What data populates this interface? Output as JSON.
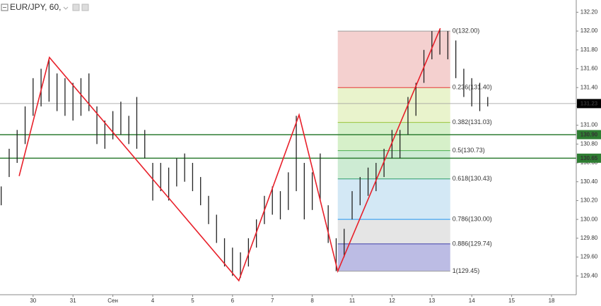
{
  "chart_data": {
    "type": "ohlc",
    "title": "EUR/JPY, 60,",
    "color": "#222222",
    "x": [
      -0.8,
      -0.6,
      -0.4,
      -0.2,
      0.0,
      0.2,
      0.4,
      0.6,
      0.8,
      1.0,
      1.2,
      1.4,
      1.6,
      1.8,
      2.0,
      2.2,
      2.4,
      2.6,
      2.8,
      3.0,
      3.2,
      3.4,
      3.6,
      3.8,
      4.0,
      4.2,
      4.4,
      4.6,
      4.8,
      5.0,
      5.2,
      5.4,
      5.6,
      5.8,
      6.0,
      6.2,
      6.4,
      6.6,
      6.8,
      7.0,
      7.2,
      7.4,
      7.6,
      7.8,
      8.0,
      8.2,
      8.4,
      8.6,
      8.8,
      9.0,
      9.2,
      9.4,
      9.6,
      9.8,
      10.0,
      10.2,
      10.4,
      10.6,
      10.8,
      11.0,
      11.2,
      11.4
    ],
    "high": [
      130.35,
      130.75,
      130.95,
      131.2,
      131.5,
      131.6,
      131.7,
      131.55,
      131.5,
      131.45,
      131.5,
      131.55,
      131.2,
      131.05,
      131.15,
      131.25,
      131.1,
      131.3,
      130.95,
      130.6,
      130.6,
      130.55,
      130.65,
      130.7,
      130.6,
      130.45,
      130.25,
      130.05,
      129.8,
      129.7,
      129.65,
      129.8,
      130.0,
      130.25,
      130.35,
      130.3,
      130.5,
      131.1,
      130.6,
      130.5,
      130.7,
      130.15,
      129.8,
      129.9,
      130.3,
      130.45,
      130.55,
      130.6,
      130.75,
      130.95,
      130.95,
      131.3,
      131.45,
      131.8,
      132.0,
      132.02,
      132.0,
      131.9,
      131.6,
      131.5,
      131.45,
      131.3
    ],
    "low": [
      130.15,
      130.45,
      130.6,
      130.8,
      131.1,
      131.2,
      131.25,
      131.15,
      131.1,
      131.05,
      131.1,
      131.15,
      130.8,
      130.75,
      130.85,
      130.9,
      130.8,
      130.75,
      130.65,
      130.2,
      130.3,
      130.2,
      130.35,
      130.4,
      130.3,
      130.15,
      129.95,
      129.75,
      129.5,
      129.4,
      129.38,
      129.5,
      129.7,
      129.95,
      130.05,
      130.0,
      130.1,
      130.3,
      130.0,
      130.1,
      130.2,
      129.75,
      129.45,
      129.6,
      130.0,
      130.15,
      130.25,
      130.3,
      130.45,
      130.65,
      130.65,
      130.9,
      131.1,
      131.45,
      131.7,
      131.75,
      131.7,
      131.5,
      131.3,
      131.2,
      131.15,
      131.2
    ],
    "xlim": [
      -0.83,
      13.62
    ],
    "ylim": [
      129.2,
      132.33
    ],
    "xticks": [
      {
        "value": 0,
        "label": "30"
      },
      {
        "value": 1,
        "label": "31"
      },
      {
        "value": 2,
        "label": "Сен"
      },
      {
        "value": 3,
        "label": "4"
      },
      {
        "value": 4,
        "label": "5"
      },
      {
        "value": 5,
        "label": "6"
      },
      {
        "value": 6,
        "label": "7"
      },
      {
        "value": 7,
        "label": "8"
      },
      {
        "value": 8,
        "label": "11"
      },
      {
        "value": 9,
        "label": "12"
      },
      {
        "value": 10,
        "label": "13"
      },
      {
        "value": 11,
        "label": "14"
      },
      {
        "value": 12,
        "label": "15"
      },
      {
        "value": 13,
        "label": "18"
      }
    ],
    "yticks": [
      {
        "value": 129.4,
        "label": "129.40"
      },
      {
        "value": 129.6,
        "label": "129.60"
      },
      {
        "value": 129.8,
        "label": "129.80"
      },
      {
        "value": 130.0,
        "label": "130.00"
      },
      {
        "value": 130.2,
        "label": "130.20"
      },
      {
        "value": 130.4,
        "label": "130.40"
      },
      {
        "value": 130.6,
        "label": "130.60"
      },
      {
        "value": 130.8,
        "label": "130.80"
      },
      {
        "value": 131.0,
        "label": "131.00"
      },
      {
        "value": 131.2,
        "label": "131.20"
      },
      {
        "value": 131.4,
        "label": "131.40"
      },
      {
        "value": 131.6,
        "label": "131.60"
      },
      {
        "value": 131.8,
        "label": "131.80"
      },
      {
        "value": 132.0,
        "label": "132.00"
      },
      {
        "value": 132.2,
        "label": "132.20"
      }
    ],
    "zigzag": {
      "color": "#e8202a",
      "x": [
        -0.35,
        0.41,
        5.16,
        6.67,
        7.64,
        10.21
      ],
      "y": [
        130.46,
        131.72,
        129.35,
        131.11,
        129.45,
        132.03
      ]
    },
    "fibonacci": {
      "x": [
        7.64,
        10.46
      ],
      "levels": [
        {
          "value": 132.0,
          "label": "0(132.00)",
          "color": "#9e9e9e"
        },
        {
          "value": 131.4,
          "label": "0.236(131.40)",
          "color": "#e53935"
        },
        {
          "value": 131.03,
          "label": "0.382(131.03)",
          "color": "#9bc53d"
        },
        {
          "value": 130.73,
          "label": "0.5(130.73)",
          "color": "#4caf50"
        },
        {
          "value": 130.43,
          "label": "0.618(130.43)",
          "color": "#2e9e6e"
        },
        {
          "value": 130.0,
          "label": "0.786(130.00)",
          "color": "#2196f3"
        },
        {
          "value": 129.74,
          "label": "0.886(129.74)",
          "color": "#3f3fa8"
        },
        {
          "value": 129.45,
          "label": "1(129.45)",
          "color": "#9e9e9e"
        }
      ],
      "zone_colors": [
        "#f4d0cf",
        "#e9f3cc",
        "#d6f0c9",
        "#cdebd3",
        "#d3e8f5",
        "#e5e5e5",
        "#bcbce4"
      ]
    },
    "hlines": [
      {
        "value": 130.9,
        "label": "130.90",
        "color": "#2e7d32"
      },
      {
        "value": 130.65,
        "label": "130.65",
        "color": "#2e7d32"
      }
    ],
    "last_price": {
      "value": 131.23,
      "label": "131.23",
      "color": "#000000"
    }
  }
}
